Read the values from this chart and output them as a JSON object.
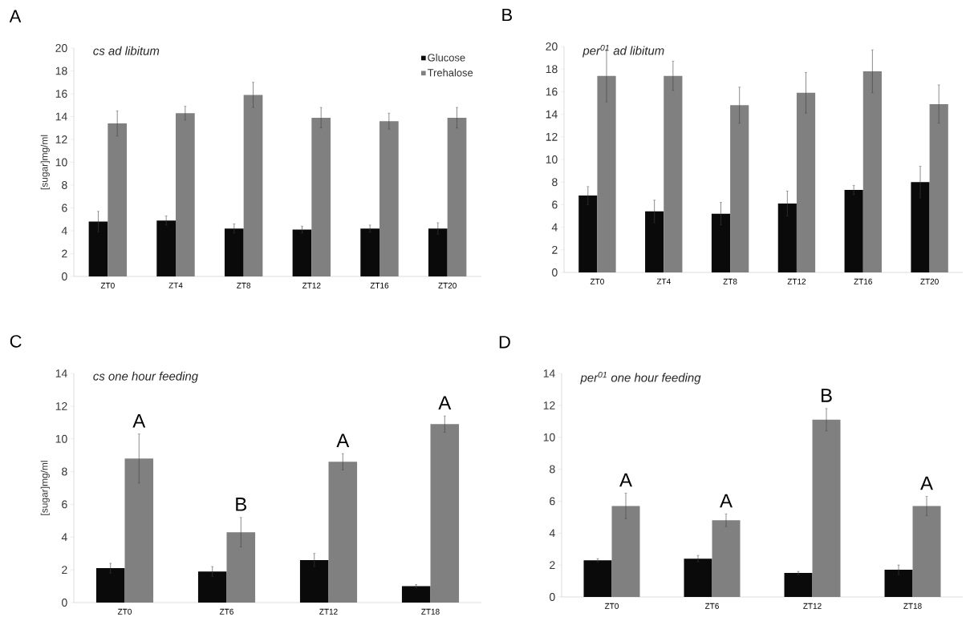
{
  "chart_data": [
    {
      "type": "bar",
      "title": "A",
      "subtitle": "cs ad libitum",
      "ylabel": "[sugar]mg/ml",
      "categories": [
        "ZT0",
        "ZT4",
        "ZT8",
        "ZT12",
        "ZT16",
        "ZT20"
      ],
      "series": [
        {
          "name": "Glucose",
          "color": "#0a0a0a",
          "values": [
            4.8,
            4.9,
            4.2,
            4.1,
            4.2,
            4.2
          ],
          "errors": [
            0.9,
            0.4,
            0.4,
            0.3,
            0.3,
            0.5
          ]
        },
        {
          "name": "Trehalose",
          "color": "#808080",
          "values": [
            13.4,
            14.3,
            15.9,
            13.9,
            13.6,
            13.9
          ],
          "errors": [
            1.1,
            0.6,
            1.1,
            0.9,
            0.7,
            0.9
          ]
        }
      ],
      "ylim": [
        0,
        20
      ],
      "yticks": [
        0,
        2,
        4,
        6,
        8,
        10,
        12,
        14,
        16,
        18,
        20
      ],
      "legend": "top right"
    },
    {
      "type": "bar",
      "title": "B",
      "subtitle": "per$^{01}$ ad libitum",
      "categories": [
        "ZT0",
        "ZT4",
        "ZT8",
        "ZT12",
        "ZT16",
        "ZT20"
      ],
      "series": [
        {
          "color": "#0a0a0a",
          "values": [
            6.8,
            5.4,
            5.2,
            6.1,
            7.3,
            8.0
          ],
          "errors": [
            0.8,
            1.0,
            1.0,
            1.1,
            0.4,
            1.4
          ]
        },
        {
          "color": "#808080",
          "values": [
            17.4,
            17.4,
            14.8,
            15.9,
            17.8,
            14.9
          ],
          "errors": [
            2.3,
            1.3,
            1.6,
            1.8,
            1.9,
            1.7
          ]
        }
      ],
      "ylim": [
        0,
        20
      ],
      "yticks": [
        0,
        2,
        4,
        6,
        8,
        10,
        12,
        14,
        16,
        18,
        20
      ]
    },
    {
      "type": "bar",
      "title": "C",
      "subtitle": "cs one hour feeding",
      "ylabel": "[sugar]mg/ml",
      "categories": [
        "ZT0",
        "ZT6",
        "ZT12",
        "ZT18"
      ],
      "series": [
        {
          "color": "#0a0a0a",
          "values": [
            2.1,
            1.9,
            2.6,
            1.0
          ],
          "errors": [
            0.3,
            0.3,
            0.4,
            0.1
          ]
        },
        {
          "color": "#808080",
          "values": [
            8.8,
            4.3,
            8.6,
            10.9
          ],
          "errors": [
            1.5,
            0.9,
            0.5,
            0.5
          ]
        }
      ],
      "ylim": [
        0,
        14
      ],
      "yticks": [
        0,
        2,
        4,
        6,
        8,
        10,
        12,
        14
      ],
      "annotations": [
        "A",
        "B",
        "A",
        "A"
      ]
    },
    {
      "type": "bar",
      "title": "D",
      "subtitle": "per$^{01}$ one hour feeding",
      "categories": [
        "ZT0",
        "ZT6",
        "ZT12",
        "ZT18"
      ],
      "series": [
        {
          "color": "#0a0a0a",
          "values": [
            2.3,
            2.4,
            1.5,
            1.7
          ],
          "errors": [
            0.1,
            0.2,
            0.1,
            0.3
          ]
        },
        {
          "color": "#808080",
          "values": [
            5.7,
            4.8,
            11.1,
            5.7
          ],
          "errors": [
            0.8,
            0.4,
            0.7,
            0.6
          ]
        }
      ],
      "ylim": [
        0,
        14
      ],
      "yticks": [
        0,
        2,
        4,
        6,
        8,
        10,
        12,
        14
      ],
      "annotations": [
        "A",
        "A",
        "B",
        "A"
      ]
    }
  ]
}
